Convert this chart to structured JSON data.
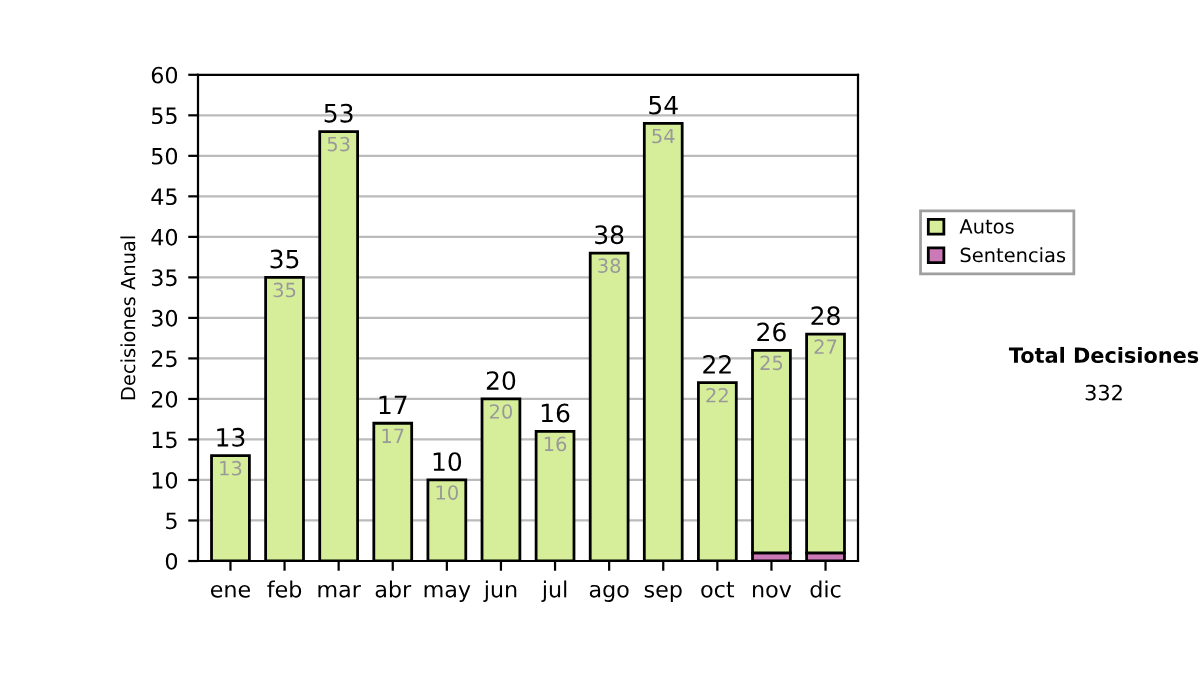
{
  "chart_data": {
    "type": "bar",
    "stacked": true,
    "ylabel": "Decisiones Anual",
    "categories": [
      "ene",
      "feb",
      "mar",
      "abr",
      "may",
      "jun",
      "jul",
      "ago",
      "sep",
      "oct",
      "nov",
      "dic"
    ],
    "series": [
      {
        "name": "Sentencias",
        "color": "#cc79b8",
        "values": [
          0,
          0,
          0,
          0,
          0,
          0,
          0,
          0,
          0,
          0,
          1,
          1
        ]
      },
      {
        "name": "Autos",
        "color": "#d6ee99",
        "values": [
          13,
          35,
          53,
          17,
          10,
          20,
          16,
          38,
          54,
          22,
          25,
          27
        ],
        "value_labels": [
          "13",
          "35",
          "53",
          "17",
          "10",
          "20",
          "16",
          "38",
          "54",
          "22",
          "25",
          "27"
        ]
      }
    ],
    "totals": [
      "13",
      "35",
      "53",
      "17",
      "10",
      "20",
      "16",
      "38",
      "54",
      "22",
      "26",
      "28"
    ],
    "ylim": [
      0,
      60
    ],
    "yticks": [
      0,
      5,
      10,
      15,
      20,
      25,
      30,
      35,
      40,
      45,
      50,
      55,
      60
    ],
    "grid": "y",
    "legend": "right",
    "annotations": [
      "Total Decisiones",
      "332"
    ]
  }
}
